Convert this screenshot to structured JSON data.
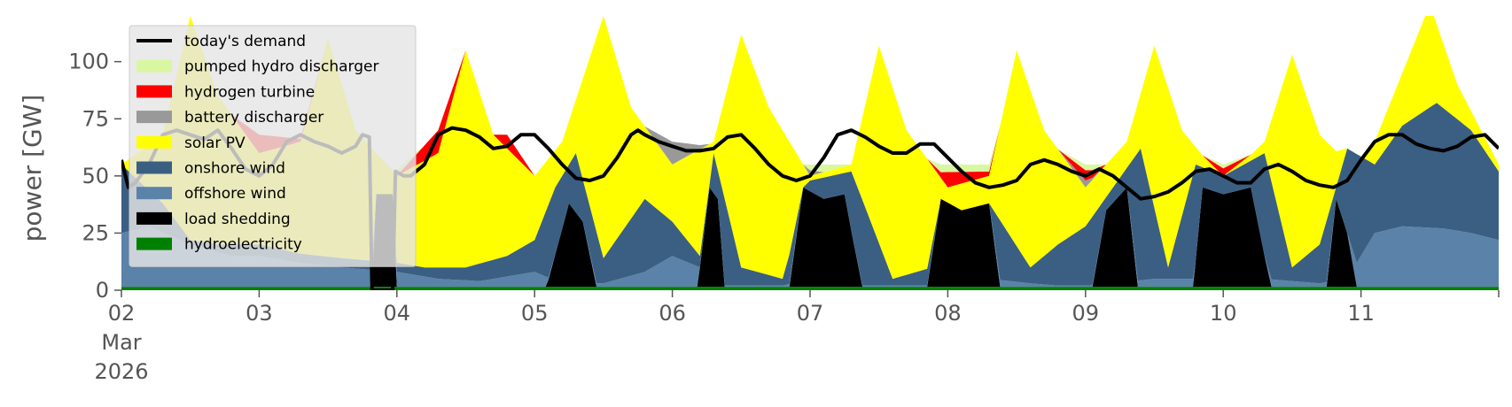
{
  "chart_data": {
    "type": "area",
    "stacked": true,
    "ylabel": "power [GW]",
    "ylim": [
      0,
      120
    ],
    "yticks": [
      0,
      25,
      50,
      75,
      100
    ],
    "xlim": [
      2,
      12
    ],
    "x_ticks": [
      {
        "value": 2,
        "lines": [
          "02",
          "Mar",
          "2026"
        ]
      },
      {
        "value": 3,
        "lines": [
          "03"
        ]
      },
      {
        "value": 4,
        "lines": [
          "04"
        ]
      },
      {
        "value": 5,
        "lines": [
          "05"
        ]
      },
      {
        "value": 6,
        "lines": [
          "06"
        ]
      },
      {
        "value": 7,
        "lines": [
          "07"
        ]
      },
      {
        "value": 8,
        "lines": [
          "08"
        ]
      },
      {
        "value": 9,
        "lines": [
          "09"
        ]
      },
      {
        "value": 10,
        "lines": [
          "10"
        ]
      },
      {
        "value": 11,
        "lines": [
          "11"
        ]
      }
    ],
    "grid": false,
    "legend_placement": "upper-left",
    "series": [
      {
        "name": "hydroelectricity",
        "color": "#008000",
        "points": [
          [
            2,
            1.5
          ],
          [
            4,
            1.5
          ],
          [
            6,
            1.5
          ],
          [
            8,
            1.5
          ],
          [
            10,
            1.5
          ],
          [
            12,
            1.5
          ]
        ]
      },
      {
        "name": "load shedding",
        "color": "#000000",
        "points": [
          [
            2,
            0
          ],
          [
            3.82,
            0
          ],
          [
            3.85,
            42
          ],
          [
            3.97,
            42
          ],
          [
            4.0,
            0
          ],
          [
            5.08,
            0
          ],
          [
            5.25,
            38
          ],
          [
            5.35,
            30
          ],
          [
            5.45,
            0
          ],
          [
            6.18,
            0
          ],
          [
            6.27,
            45
          ],
          [
            6.33,
            40
          ],
          [
            6.38,
            0
          ],
          [
            6.85,
            0
          ],
          [
            6.95,
            45
          ],
          [
            7.1,
            40
          ],
          [
            7.25,
            42
          ],
          [
            7.38,
            0
          ],
          [
            7.85,
            0
          ],
          [
            7.95,
            40
          ],
          [
            8.1,
            35
          ],
          [
            8.3,
            38
          ],
          [
            8.38,
            0
          ],
          [
            9.05,
            0
          ],
          [
            9.15,
            35
          ],
          [
            9.3,
            45
          ],
          [
            9.38,
            0
          ],
          [
            9.78,
            0
          ],
          [
            9.85,
            45
          ],
          [
            10.0,
            42
          ],
          [
            10.2,
            45
          ],
          [
            10.35,
            0
          ],
          [
            10.75,
            0
          ],
          [
            10.82,
            40
          ],
          [
            10.9,
            25
          ],
          [
            10.97,
            0
          ],
          [
            12,
            0
          ]
        ]
      },
      {
        "name": "offshore wind",
        "color": "#5b82a8",
        "points": [
          [
            2,
            25
          ],
          [
            2.2,
            28
          ],
          [
            2.5,
            20
          ],
          [
            2.8,
            15
          ],
          [
            3.0,
            15
          ],
          [
            3.3,
            12
          ],
          [
            3.6,
            10
          ],
          [
            4.0,
            8
          ],
          [
            4.3,
            5
          ],
          [
            4.6,
            4
          ],
          [
            5.0,
            8
          ],
          [
            5.2,
            3
          ],
          [
            5.5,
            3
          ],
          [
            5.8,
            8
          ],
          [
            6.0,
            15
          ],
          [
            6.2,
            10
          ],
          [
            6.3,
            2
          ],
          [
            6.5,
            2
          ],
          [
            6.8,
            2
          ],
          [
            7.0,
            5
          ],
          [
            7.3,
            2
          ],
          [
            7.6,
            2
          ],
          [
            8.0,
            2
          ],
          [
            8.3,
            5
          ],
          [
            8.6,
            3
          ],
          [
            8.8,
            2
          ],
          [
            9.0,
            2
          ],
          [
            9.2,
            3
          ],
          [
            9.5,
            5
          ],
          [
            9.8,
            5
          ],
          [
            10.0,
            3
          ],
          [
            10.3,
            5
          ],
          [
            10.5,
            4
          ],
          [
            10.7,
            3
          ],
          [
            10.9,
            5
          ],
          [
            11.1,
            25
          ],
          [
            11.3,
            28
          ],
          [
            11.6,
            27
          ],
          [
            11.8,
            25
          ],
          [
            12,
            22
          ]
        ]
      },
      {
        "name": "onshore wind",
        "color": "#3a5f82",
        "points": [
          [
            2,
            55
          ],
          [
            2.3,
            38
          ],
          [
            2.5,
            22
          ],
          [
            2.7,
            20
          ],
          [
            3.0,
            20
          ],
          [
            3.3,
            16
          ],
          [
            3.6,
            14
          ],
          [
            4.0,
            12
          ],
          [
            4.2,
            10
          ],
          [
            4.5,
            10
          ],
          [
            4.8,
            15
          ],
          [
            5.0,
            22
          ],
          [
            5.15,
            45
          ],
          [
            5.3,
            60
          ],
          [
            5.5,
            14
          ],
          [
            5.8,
            40
          ],
          [
            6.0,
            30
          ],
          [
            6.2,
            15
          ],
          [
            6.3,
            60
          ],
          [
            6.5,
            10
          ],
          [
            6.8,
            5
          ],
          [
            7.0,
            48
          ],
          [
            7.3,
            52
          ],
          [
            7.6,
            5
          ],
          [
            8.0,
            12
          ],
          [
            8.3,
            38
          ],
          [
            8.6,
            10
          ],
          [
            8.8,
            20
          ],
          [
            9.0,
            28
          ],
          [
            9.2,
            45
          ],
          [
            9.4,
            62
          ],
          [
            9.6,
            10
          ],
          [
            9.8,
            55
          ],
          [
            10.0,
            50
          ],
          [
            10.3,
            60
          ],
          [
            10.5,
            10
          ],
          [
            10.7,
            20
          ],
          [
            10.9,
            62
          ],
          [
            11.1,
            55
          ],
          [
            11.3,
            72
          ],
          [
            11.55,
            82
          ],
          [
            11.8,
            70
          ],
          [
            12,
            52
          ]
        ]
      },
      {
        "name": "solar PV",
        "color": "#ffff00",
        "points": [
          [
            2,
            55
          ],
          [
            2.3,
            68
          ],
          [
            2.5,
            120
          ],
          [
            2.7,
            85
          ],
          [
            3.0,
            60
          ],
          [
            3.3,
            65
          ],
          [
            3.5,
            110
          ],
          [
            3.7,
            70
          ],
          [
            4.0,
            50
          ],
          [
            4.3,
            60
          ],
          [
            4.5,
            105
          ],
          [
            4.7,
            68
          ],
          [
            5.0,
            50
          ],
          [
            5.2,
            65
          ],
          [
            5.5,
            120
          ],
          [
            5.7,
            80
          ],
          [
            6.0,
            55
          ],
          [
            6.3,
            65
          ],
          [
            6.5,
            112
          ],
          [
            6.7,
            80
          ],
          [
            7.0,
            50
          ],
          [
            7.3,
            55
          ],
          [
            7.5,
            107
          ],
          [
            7.7,
            70
          ],
          [
            8.0,
            45
          ],
          [
            8.3,
            50
          ],
          [
            8.5,
            105
          ],
          [
            8.7,
            70
          ],
          [
            9.0,
            45
          ],
          [
            9.3,
            65
          ],
          [
            9.5,
            107
          ],
          [
            9.7,
            70
          ],
          [
            10.0,
            48
          ],
          [
            10.3,
            65
          ],
          [
            10.5,
            103
          ],
          [
            10.7,
            68
          ],
          [
            11.0,
            50
          ],
          [
            11.3,
            95
          ],
          [
            11.5,
            125
          ],
          [
            11.7,
            90
          ],
          [
            12,
            55
          ]
        ]
      },
      {
        "name": "battery discharger",
        "color": "#999999",
        "points": [
          [
            2,
            55
          ],
          [
            3,
            60
          ],
          [
            4,
            50
          ],
          [
            5,
            48
          ],
          [
            5.6,
            65
          ],
          [
            6.0,
            65
          ],
          [
            6.4,
            62
          ],
          [
            6.8,
            60
          ],
          [
            7.2,
            45
          ],
          [
            7.6,
            55
          ],
          [
            8.0,
            42
          ],
          [
            8.5,
            50
          ],
          [
            9.0,
            48
          ],
          [
            9.5,
            60
          ],
          [
            10.0,
            50
          ],
          [
            10.5,
            65
          ],
          [
            11.0,
            50
          ],
          [
            11.5,
            72
          ],
          [
            12,
            55
          ]
        ]
      },
      {
        "name": "hydrogen turbine",
        "color": "#ff0000",
        "points": [
          [
            2,
            55
          ],
          [
            3.0,
            68
          ],
          [
            3.5,
            65
          ],
          [
            4.0,
            50
          ],
          [
            4.3,
            70
          ],
          [
            4.6,
            65
          ],
          [
            4.8,
            68
          ],
          [
            5.0,
            50
          ],
          [
            5.5,
            65
          ],
          [
            6.0,
            50
          ],
          [
            12,
            55
          ]
        ]
      },
      {
        "name": "pumped hydro discharger",
        "color": "#d9f7a1",
        "points": [
          [
            2,
            55
          ],
          [
            4.9,
            52
          ],
          [
            5.1,
            48
          ],
          [
            5.3,
            52
          ],
          [
            6.1,
            48
          ],
          [
            6.2,
            55
          ],
          [
            12,
            55
          ]
        ]
      }
    ],
    "demand": {
      "name": "today's demand",
      "color": "#000000",
      "points": [
        [
          2,
          57
        ],
        [
          2.05,
          45
        ],
        [
          2.1,
          47
        ],
        [
          2.2,
          55
        ],
        [
          2.3,
          68
        ],
        [
          2.4,
          70
        ],
        [
          2.5,
          68
        ],
        [
          2.6,
          66
        ],
        [
          2.7,
          70
        ],
        [
          2.8,
          62
        ],
        [
          2.9,
          53
        ],
        [
          3.0,
          50
        ],
        [
          3.1,
          55
        ],
        [
          3.2,
          65
        ],
        [
          3.3,
          68
        ],
        [
          3.4,
          65
        ],
        [
          3.5,
          63
        ],
        [
          3.6,
          60
        ],
        [
          3.7,
          63
        ],
        [
          3.75,
          68
        ],
        [
          3.8,
          67
        ],
        [
          3.82,
          0
        ],
        [
          3.85,
          0
        ],
        [
          3.97,
          0
        ],
        [
          3.99,
          52
        ],
        [
          4.05,
          50
        ],
        [
          4.1,
          50
        ],
        [
          4.2,
          55
        ],
        [
          4.3,
          68
        ],
        [
          4.4,
          71
        ],
        [
          4.5,
          70
        ],
        [
          4.6,
          67
        ],
        [
          4.7,
          62
        ],
        [
          4.8,
          63
        ],
        [
          4.9,
          68
        ],
        [
          5.0,
          68
        ],
        [
          5.1,
          62
        ],
        [
          5.2,
          55
        ],
        [
          5.3,
          49
        ],
        [
          5.4,
          48
        ],
        [
          5.5,
          50
        ],
        [
          5.6,
          58
        ],
        [
          5.7,
          68
        ],
        [
          5.75,
          70
        ],
        [
          5.8,
          68
        ],
        [
          5.9,
          65
        ],
        [
          6.0,
          63
        ],
        [
          6.1,
          61
        ],
        [
          6.2,
          61
        ],
        [
          6.3,
          62
        ],
        [
          6.4,
          67
        ],
        [
          6.5,
          68
        ],
        [
          6.6,
          62
        ],
        [
          6.7,
          55
        ],
        [
          6.8,
          50
        ],
        [
          6.9,
          48
        ],
        [
          7.0,
          50
        ],
        [
          7.1,
          58
        ],
        [
          7.2,
          68
        ],
        [
          7.3,
          70
        ],
        [
          7.4,
          67
        ],
        [
          7.5,
          63
        ],
        [
          7.6,
          60
        ],
        [
          7.7,
          60
        ],
        [
          7.8,
          64
        ],
        [
          7.9,
          64
        ],
        [
          8.0,
          58
        ],
        [
          8.1,
          52
        ],
        [
          8.2,
          47
        ],
        [
          8.3,
          45
        ],
        [
          8.4,
          46
        ],
        [
          8.5,
          48
        ],
        [
          8.6,
          55
        ],
        [
          8.7,
          57
        ],
        [
          8.8,
          55
        ],
        [
          8.9,
          52
        ],
        [
          9.0,
          50
        ],
        [
          9.1,
          53
        ],
        [
          9.2,
          50
        ],
        [
          9.3,
          45
        ],
        [
          9.4,
          40
        ],
        [
          9.5,
          41
        ],
        [
          9.6,
          43
        ],
        [
          9.7,
          47
        ],
        [
          9.8,
          52
        ],
        [
          9.9,
          53
        ],
        [
          10.0,
          50
        ],
        [
          10.1,
          47
        ],
        [
          10.2,
          47
        ],
        [
          10.3,
          53
        ],
        [
          10.4,
          55
        ],
        [
          10.5,
          52
        ],
        [
          10.6,
          48
        ],
        [
          10.7,
          46
        ],
        [
          10.8,
          45
        ],
        [
          10.9,
          48
        ],
        [
          11.0,
          57
        ],
        [
          11.1,
          65
        ],
        [
          11.2,
          68
        ],
        [
          11.3,
          68
        ],
        [
          11.4,
          64
        ],
        [
          11.5,
          62
        ],
        [
          11.6,
          61
        ],
        [
          11.7,
          63
        ],
        [
          11.8,
          67
        ],
        [
          11.9,
          68
        ],
        [
          12,
          62
        ]
      ]
    }
  }
}
